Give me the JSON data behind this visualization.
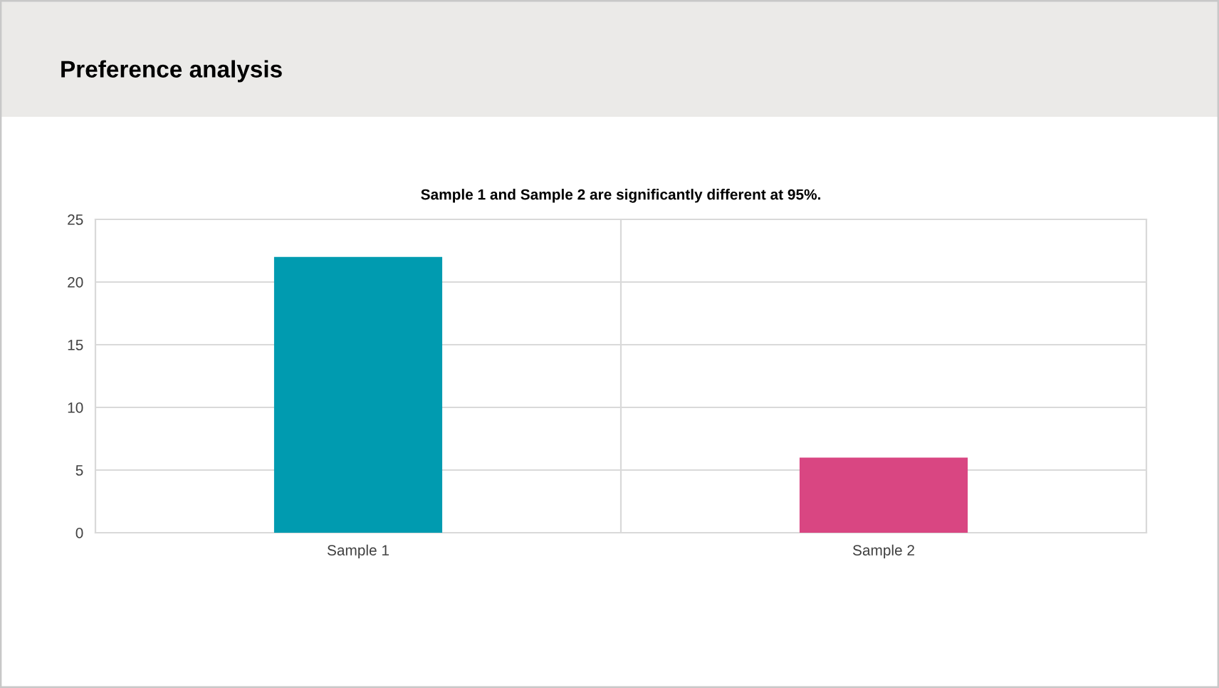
{
  "chart_data": {
    "type": "bar",
    "title": "Preference analysis",
    "subtitle": "Sample 1 and Sample 2 are significantly different at 95%.",
    "categories": [
      "Sample 1",
      "Sample 2"
    ],
    "values": [
      22,
      6
    ],
    "colors": [
      "#009bb0",
      "#d94682"
    ],
    "ylim": [
      0,
      25
    ],
    "yticks": [
      0,
      5,
      10,
      15,
      20,
      25
    ],
    "grid": true
  }
}
